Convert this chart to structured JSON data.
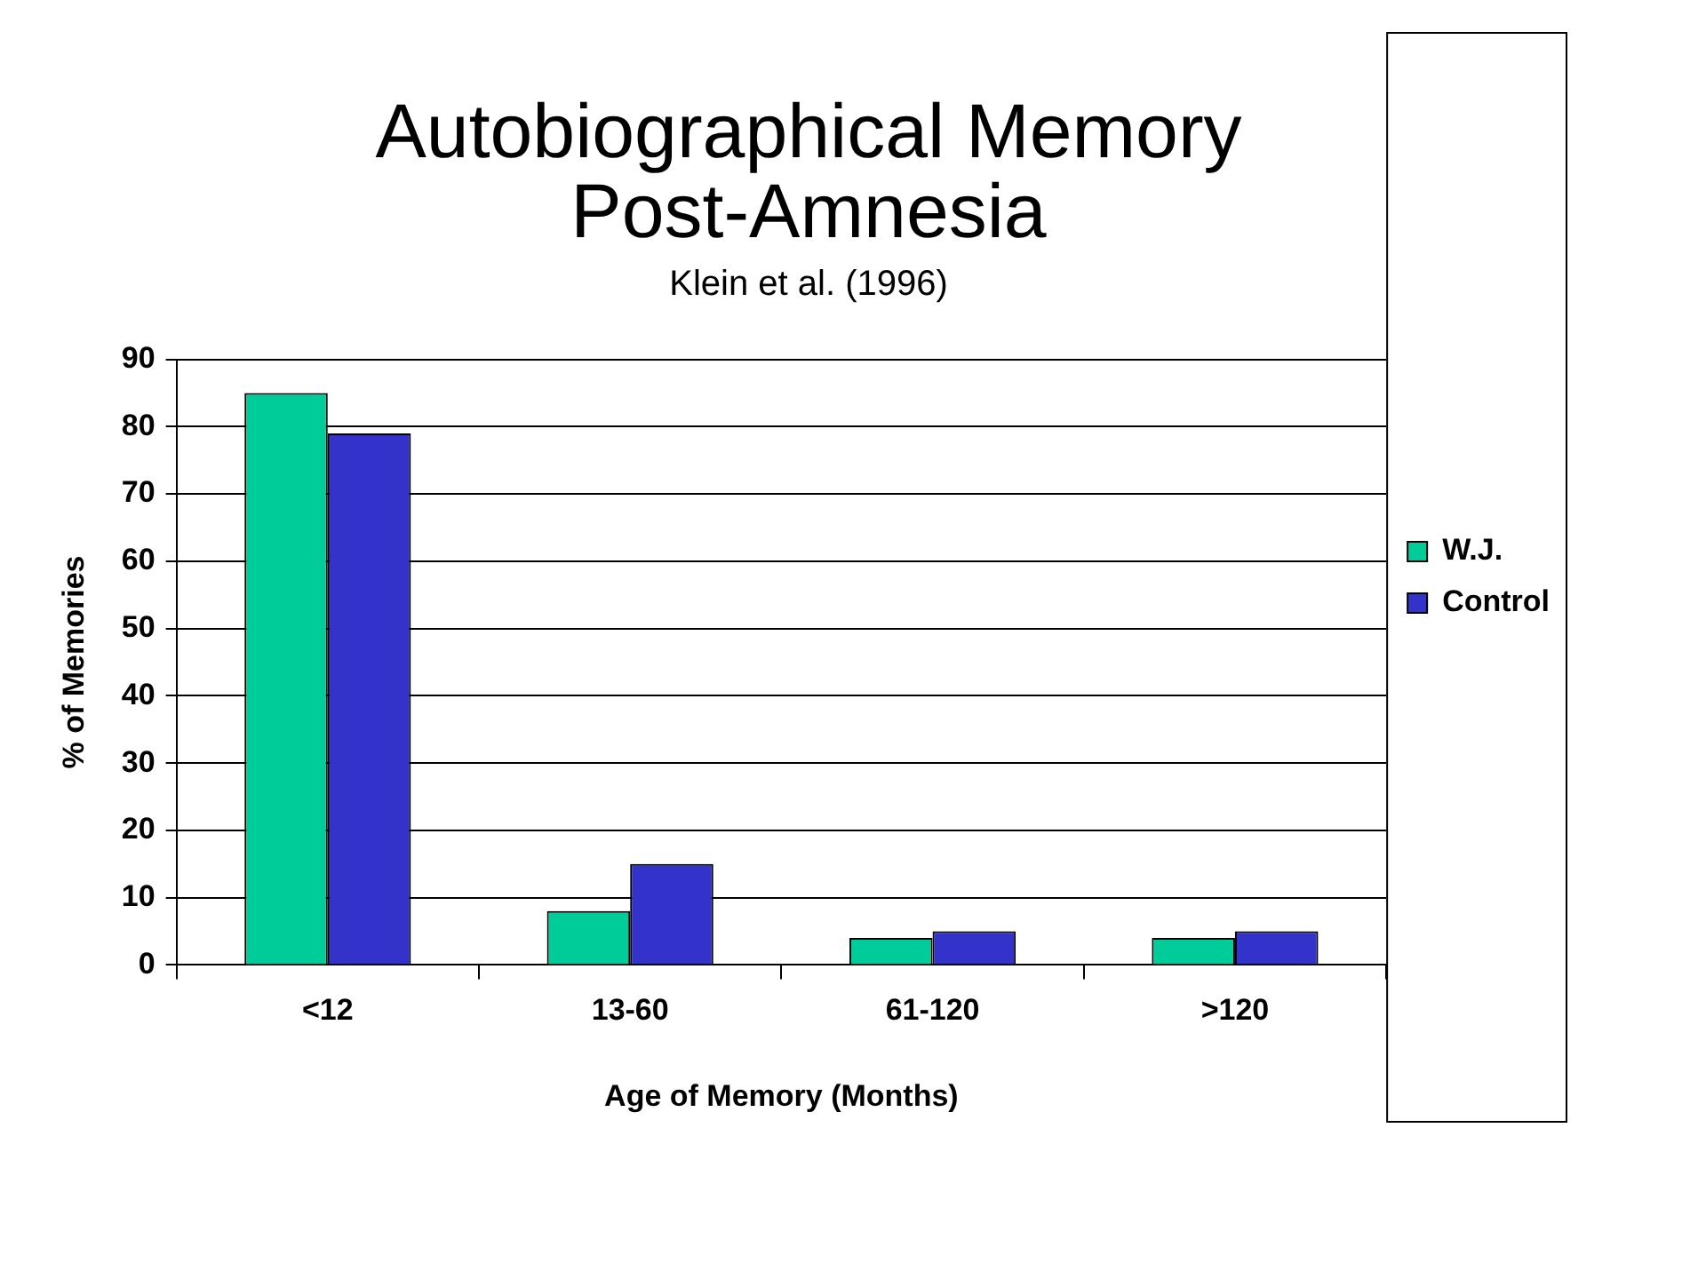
{
  "chart_data": {
    "type": "bar",
    "title": "Autobiographical Memory\nPost-Amnesia",
    "subtitle": "Klein et al. (1996)",
    "xlabel": "Age of Memory (Months)",
    "ylabel": "% of Memories",
    "categories": [
      "<12",
      "13-60",
      "61-120",
      ">120"
    ],
    "series": [
      {
        "name": "W.J.",
        "color": "#00cc99",
        "values": [
          85,
          8,
          4,
          4
        ]
      },
      {
        "name": "Control",
        "color": "#3333cc",
        "values": [
          79,
          15,
          5,
          5
        ]
      }
    ],
    "ylim": [
      0,
      90
    ],
    "yticks": [
      0,
      10,
      20,
      30,
      40,
      50,
      60,
      70,
      80,
      90
    ],
    "grid": "y",
    "legend": "right"
  }
}
